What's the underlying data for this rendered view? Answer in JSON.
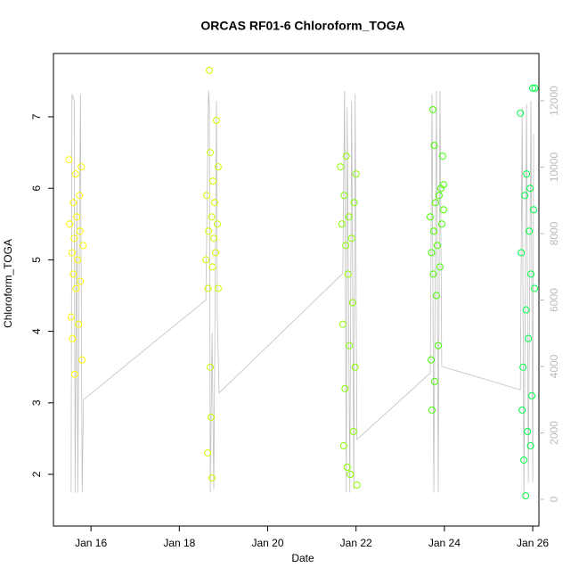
{
  "chart_data": {
    "type": "scatter",
    "title": "ORCAS RF01-6 Chloroform_TOGA",
    "x_label": "Date",
    "y_label": "Chloroform_TOGA",
    "xlim": [
      15.15,
      26.14
    ],
    "ylim": [
      1.277,
      7.885
    ],
    "y2lim": [
      -805,
      13423
    ],
    "xticks": [
      {
        "value": 16,
        "label": "Jan 16"
      },
      {
        "value": 18,
        "label": "Jan 18"
      },
      {
        "value": 20,
        "label": "Jan 20"
      },
      {
        "value": 22,
        "label": "Jan 22"
      },
      {
        "value": 24,
        "label": "Jan 24"
      },
      {
        "value": 26,
        "label": "Jan 26"
      }
    ],
    "yticks": [
      2,
      3,
      4,
      5,
      6,
      7
    ],
    "y2ticks": [
      0,
      2000,
      4000,
      6000,
      8000,
      10000,
      12000
    ],
    "y2_color": "#bbbbbb",
    "series": [
      {
        "color": "#ffff00",
        "x": [
          15.5,
          15.52,
          15.55,
          15.57,
          15.58,
          15.6,
          15.6,
          15.62,
          15.63,
          15.65,
          15.66,
          15.68,
          15.7,
          15.72,
          15.74,
          15.75,
          15.76,
          15.78,
          15.8,
          15.82
        ],
        "values": [
          6.4,
          5.5,
          4.2,
          5.1,
          3.9,
          5.8,
          4.8,
          5.3,
          3.4,
          6.2,
          4.6,
          5.6,
          5.0,
          4.1,
          5.9,
          5.4,
          4.7,
          6.3,
          3.6,
          5.2
        ]
      },
      {
        "color": "#ccff00",
        "x": [
          18.6,
          18.62,
          18.64,
          18.65,
          18.66,
          18.68,
          18.7,
          18.7,
          18.72,
          18.73,
          18.74,
          18.75,
          18.76,
          18.78,
          18.8,
          18.82,
          18.84,
          18.86,
          18.88,
          18.88
        ],
        "values": [
          5.0,
          5.9,
          2.3,
          4.6,
          5.4,
          7.65,
          3.5,
          6.5,
          2.8,
          5.6,
          1.95,
          4.9,
          6.1,
          5.3,
          5.8,
          5.1,
          6.95,
          5.5,
          4.6,
          6.3
        ]
      },
      {
        "color": "#88ff00",
        "x": [
          21.65,
          21.68,
          21.7,
          21.72,
          21.73,
          21.75,
          21.77,
          21.78,
          21.8,
          21.82,
          21.84,
          21.85,
          21.87,
          21.9,
          21.92,
          21.94,
          21.96,
          21.98,
          22.0,
          22.02
        ],
        "values": [
          6.3,
          5.5,
          4.1,
          2.4,
          5.9,
          3.2,
          5.2,
          6.45,
          2.1,
          4.8,
          5.6,
          3.8,
          2.0,
          5.3,
          4.4,
          2.6,
          5.8,
          3.5,
          6.2,
          1.85
        ]
      },
      {
        "color": "#44ff00",
        "x": [
          23.68,
          23.7,
          23.71,
          23.72,
          23.74,
          23.75,
          23.76,
          23.77,
          23.78,
          23.8,
          23.82,
          23.84,
          23.86,
          23.88,
          23.9,
          23.92,
          23.94,
          23.96,
          23.98,
          23.98
        ],
        "values": [
          5.6,
          3.6,
          5.1,
          2.9,
          7.1,
          4.8,
          5.4,
          6.6,
          3.3,
          5.8,
          4.5,
          5.2,
          3.8,
          5.9,
          4.9,
          6.0,
          5.5,
          6.45,
          5.7,
          6.05
        ]
      },
      {
        "color": "#00ff44",
        "x": [
          25.72,
          25.74,
          25.76,
          25.78,
          25.8,
          25.82,
          25.84,
          25.85,
          25.86,
          25.88,
          25.9,
          25.92,
          25.94,
          25.95,
          25.96,
          25.98,
          26.0,
          26.02,
          26.04,
          26.05
        ],
        "values": [
          7.05,
          5.1,
          2.9,
          3.5,
          2.2,
          5.9,
          1.7,
          4.3,
          6.2,
          2.6,
          3.9,
          5.4,
          6.0,
          2.4,
          4.8,
          3.1,
          7.4,
          5.7,
          4.6,
          7.4
        ]
      },
      {
        "type": "line",
        "axis": "y2",
        "color": "#c0c0c0",
        "x": [
          15.55,
          15.57,
          15.62,
          15.64,
          15.68,
          15.7,
          15.76,
          15.8,
          15.83,
          18.6,
          18.66,
          18.68,
          18.7,
          18.74,
          18.78,
          18.84,
          18.86,
          18.9,
          21.7,
          21.74,
          21.78,
          21.8,
          21.86,
          21.9,
          21.95,
          21.98,
          22.02,
          23.68,
          23.72,
          23.76,
          23.82,
          23.86,
          23.9,
          23.94,
          25.72,
          25.76,
          25.8,
          25.86,
          25.9,
          25.96,
          26.0,
          26.02
        ],
        "values": [
          200,
          12200,
          12000,
          200,
          9000,
          200,
          12200,
          200,
          3000,
          6000,
          12300,
          11800,
          200,
          5000,
          300,
          12000,
          5500,
          3200,
          6800,
          12300,
          200,
          11800,
          200,
          12000,
          300,
          12200,
          1800,
          3800,
          12200,
          200,
          12300,
          200,
          12300,
          4000,
          3300,
          11800,
          0,
          11900,
          500,
          12000,
          500,
          11000
        ]
      }
    ]
  }
}
